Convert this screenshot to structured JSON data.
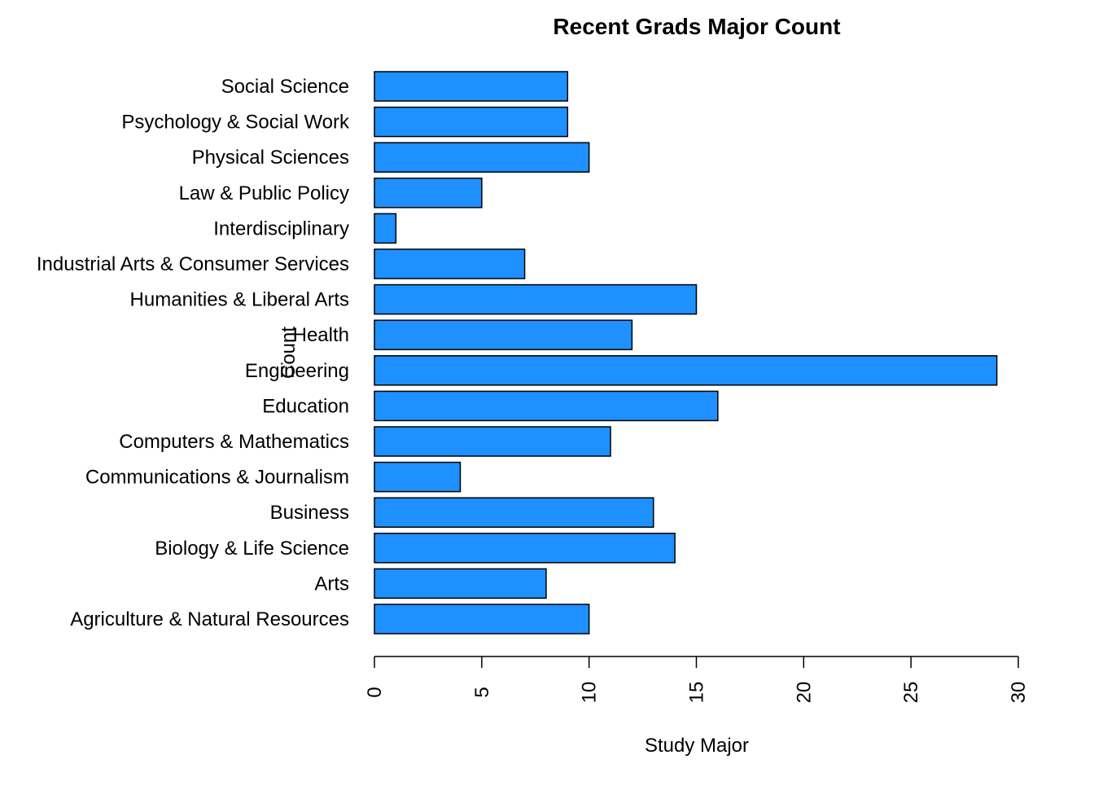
{
  "chart_data": {
    "type": "bar",
    "orientation": "horizontal",
    "title": "Recent Grads Major Count",
    "xlabel": "Study Major",
    "ylabel": "Count",
    "categories": [
      "Agriculture & Natural Resources",
      "Arts",
      "Biology & Life Science",
      "Business",
      "Communications & Journalism",
      "Computers & Mathematics",
      "Education",
      "Engineering",
      "Health",
      "Humanities & Liberal Arts",
      "Industrial Arts & Consumer Services",
      "Interdisciplinary",
      "Law & Public Policy",
      "Physical Sciences",
      "Psychology & Social Work",
      "Social Science"
    ],
    "values": [
      10,
      8,
      14,
      13,
      4,
      11,
      16,
      29,
      12,
      15,
      7,
      1,
      5,
      10,
      9,
      9
    ],
    "xlim": [
      0,
      30
    ],
    "xticks": [
      0,
      5,
      10,
      15,
      20,
      25,
      30
    ],
    "bar_color": "#1E90FF",
    "grid": false,
    "legend": "none"
  }
}
